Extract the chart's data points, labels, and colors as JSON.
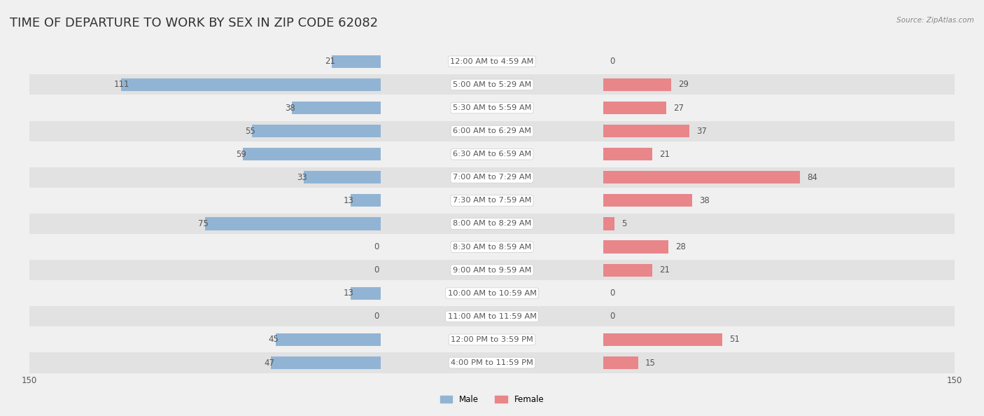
{
  "title": "TIME OF DEPARTURE TO WORK BY SEX IN ZIP CODE 62082",
  "source": "Source: ZipAtlas.com",
  "categories": [
    "12:00 AM to 4:59 AM",
    "5:00 AM to 5:29 AM",
    "5:30 AM to 5:59 AM",
    "6:00 AM to 6:29 AM",
    "6:30 AM to 6:59 AM",
    "7:00 AM to 7:29 AM",
    "7:30 AM to 7:59 AM",
    "8:00 AM to 8:29 AM",
    "8:30 AM to 8:59 AM",
    "9:00 AM to 9:59 AM",
    "10:00 AM to 10:59 AM",
    "11:00 AM to 11:59 AM",
    "12:00 PM to 3:59 PM",
    "4:00 PM to 11:59 PM"
  ],
  "male_values": [
    21,
    111,
    38,
    55,
    59,
    33,
    13,
    75,
    0,
    0,
    13,
    0,
    45,
    47
  ],
  "female_values": [
    0,
    29,
    27,
    37,
    21,
    84,
    38,
    5,
    28,
    21,
    0,
    0,
    51,
    15
  ],
  "male_color": "#92b4d4",
  "female_color": "#e8868a",
  "male_label": "Male",
  "female_label": "Female",
  "axis_max": 150,
  "row_colors": [
    "#f0f0f0",
    "#e2e2e2"
  ],
  "title_fontsize": 13,
  "label_fontsize": 8.5,
  "value_fontsize": 8.5,
  "bg_color": "#f0f0f0"
}
